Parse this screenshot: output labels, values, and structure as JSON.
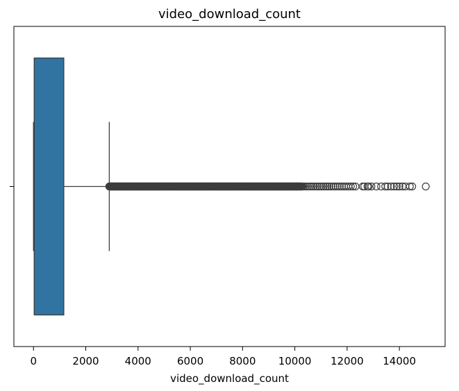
{
  "chart_data": {
    "type": "box",
    "title": "video_download_count",
    "xlabel": "video_download_count",
    "ylabel": "",
    "orientation": "horizontal",
    "xlim": [
      -750,
      15750
    ],
    "xticks": [
      0,
      2000,
      4000,
      6000,
      8000,
      10000,
      12000,
      14000
    ],
    "xtick_labels": [
      "0",
      "2000",
      "4000",
      "6000",
      "8000",
      "10000",
      "12000",
      "14000"
    ],
    "grid": false,
    "box": {
      "min": 0,
      "q1": 30,
      "median": 30,
      "q3": 1160,
      "whisker_low": 0,
      "whisker_high": 2900,
      "color": "#3274a1"
    },
    "outliers": {
      "dense_range": [
        2900,
        10300
      ],
      "sparse_points": [
        10350,
        10420,
        10500,
        10580,
        10650,
        10720,
        10800,
        10870,
        10950,
        11020,
        11100,
        11180,
        11250,
        11320,
        11400,
        11480,
        11560,
        11640,
        11720,
        11800,
        11880,
        11960,
        12050,
        12140,
        12230,
        12320,
        12600,
        12660,
        12780,
        12820,
        12930,
        13120,
        13300,
        13460,
        13550,
        13680,
        13800,
        13900,
        14000,
        14120,
        14230,
        14400,
        14490,
        15010
      ]
    },
    "colors": {
      "box_face": "#3274a1",
      "lines": "#3d3d3d"
    }
  }
}
